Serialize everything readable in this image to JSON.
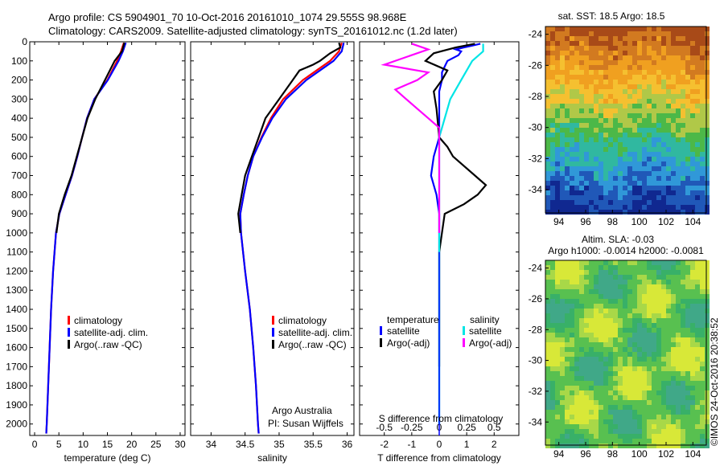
{
  "header": {
    "line1": "Argo profile: CS 5904901_70 10-Oct-2016 20161010_1074 29.555S 98.968E",
    "line2": "Climatology: CARS2009. Satellite-adjusted climatology: synTS_20161012.nc (1.2d later)"
  },
  "panels": {
    "temperature": {
      "xlabel": "temperature (deg C)",
      "legend": [
        "climatology",
        "satellite-adj. clim.",
        "Argo(..raw -QC)"
      ]
    },
    "salinity": {
      "xlabel": "salinity",
      "legend": [
        "climatology",
        "satellite-adj. clim.",
        "Argo(..raw -QC)"
      ],
      "note1": "Argo Australia",
      "note2": "PI: Susan Wijffels"
    },
    "difference": {
      "xlabel": "T difference from climatology",
      "top_label": "S difference from climatology",
      "legend_col1_title": "temperature",
      "legend_col2_title": "salinity",
      "legend_col1": [
        "satellite",
        "Argo(-adj)"
      ],
      "legend_col2": [
        "satellite",
        "Argo(-adj)"
      ]
    },
    "sst_map": {
      "title": "sat. SST: 18.5 Argo: 18.5"
    },
    "sla_map": {
      "title1": "Altim. SLA: -0.03",
      "title2": "Argo h1000: -0.0014 h2000: -0.0081"
    },
    "credit": "©IMOS 24-Oct-2016 20:38:52"
  },
  "colors": {
    "climatology": "#ff0000",
    "satellite": "#0000ff",
    "argo": "#000000",
    "sal_satellite": "#00e5e5",
    "sal_argo": "#ff00ff"
  },
  "chart_data": [
    {
      "type": "line",
      "xlabel": "temperature (deg C)",
      "ylabel": "",
      "xlim": [
        -1,
        31
      ],
      "ylim": [
        2060,
        0
      ],
      "xticks": [
        0,
        5,
        10,
        15,
        20,
        25,
        30
      ],
      "yticks": [
        0,
        100,
        200,
        300,
        400,
        500,
        600,
        700,
        800,
        900,
        1000,
        1100,
        1200,
        1300,
        1400,
        1500,
        1600,
        1700,
        1800,
        1900,
        2000
      ],
      "series": [
        {
          "name": "climatology",
          "color": "#ff0000",
          "depth": [
            5,
            50,
            100,
            150,
            200,
            300,
            400,
            500,
            600,
            700,
            800,
            900,
            1000,
            1200,
            1400,
            1600,
            1800,
            2000,
            2050
          ],
          "values": [
            18.4,
            17.8,
            17.0,
            16.0,
            15.0,
            12.3,
            10.8,
            9.8,
            8.8,
            7.7,
            6.4,
            5.1,
            4.4,
            3.8,
            3.4,
            3.1,
            2.8,
            2.5,
            2.4
          ]
        },
        {
          "name": "satellite-adj. clim.",
          "color": "#0000ff",
          "depth": [
            5,
            50,
            100,
            150,
            200,
            300,
            400,
            500,
            600,
            700,
            800,
            900,
            1000,
            1200,
            1400,
            1600,
            1800,
            2000,
            2050
          ],
          "values": [
            18.8,
            18.2,
            17.3,
            16.2,
            15.1,
            12.3,
            10.8,
            9.8,
            8.8,
            7.7,
            6.4,
            5.1,
            4.4,
            3.8,
            3.4,
            3.1,
            2.8,
            2.5,
            2.4
          ]
        },
        {
          "name": "Argo(..raw -QC)",
          "color": "#000000",
          "depth": [
            5,
            50,
            100,
            150,
            200,
            300,
            400,
            500,
            600,
            700,
            800,
            900,
            1000
          ],
          "values": [
            18.5,
            18.0,
            16.5,
            15.5,
            14.5,
            12.5,
            10.9,
            9.8,
            8.7,
            7.6,
            6.2,
            5.0,
            4.5
          ]
        }
      ]
    },
    {
      "type": "line",
      "xlabel": "salinity",
      "ylabel": "",
      "xlim": [
        33.7,
        36.1
      ],
      "ylim": [
        2060,
        0
      ],
      "xticks": [
        34,
        34.5,
        35,
        35.5,
        36
      ],
      "xtick_labels": [
        "34",
        "34.5",
        "35",
        "35.5",
        "36"
      ],
      "series": [
        {
          "name": "climatology",
          "color": "#ff0000",
          "depth": [
            5,
            50,
            100,
            150,
            200,
            300,
            400,
            500,
            600,
            700,
            800,
            900,
            1000,
            1200,
            1400,
            1600,
            1800,
            2000,
            2050
          ],
          "values": [
            35.92,
            35.88,
            35.75,
            35.55,
            35.35,
            35.06,
            34.88,
            34.74,
            34.62,
            34.54,
            34.48,
            34.43,
            34.44,
            34.5,
            34.57,
            34.62,
            34.66,
            34.69,
            34.7
          ]
        },
        {
          "name": "satellite-adj. clim.",
          "color": "#0000ff",
          "depth": [
            5,
            50,
            100,
            150,
            200,
            300,
            400,
            500,
            600,
            700,
            800,
            900,
            1000,
            1200,
            1400,
            1600,
            1800,
            2000,
            2050
          ],
          "values": [
            35.95,
            35.92,
            35.8,
            35.6,
            35.4,
            35.1,
            34.9,
            34.75,
            34.62,
            34.54,
            34.48,
            34.43,
            34.44,
            34.5,
            34.57,
            34.62,
            34.66,
            34.69,
            34.7
          ]
        },
        {
          "name": "Argo(..raw -QC)",
          "color": "#000000",
          "depth": [
            5,
            30,
            60,
            100,
            120,
            150,
            200,
            300,
            400,
            500,
            600,
            700,
            800,
            900,
            1000
          ],
          "values": [
            35.88,
            35.9,
            35.75,
            35.6,
            35.5,
            35.3,
            35.2,
            35.0,
            34.8,
            34.7,
            34.6,
            34.5,
            34.45,
            34.4,
            34.43
          ]
        }
      ]
    },
    {
      "type": "line",
      "xlabel": "T difference from climatology",
      "top_label": "S difference from climatology",
      "xlim": [
        -2.9,
        2.9
      ],
      "ylim": [
        2060,
        0
      ],
      "xticks": [
        -2,
        -1,
        0,
        1,
        2
      ],
      "top_ticks": [
        -0.5,
        -0.25,
        0,
        0.25,
        0.5
      ],
      "series": [
        {
          "name": "temperature satellite",
          "color": "#0000ff",
          "depth": [
            10,
            20,
            30,
            40,
            50,
            70,
            100,
            130,
            160,
            200,
            260,
            350,
            500,
            600,
            700,
            800,
            900,
            1000,
            1200,
            1500,
            2000
          ],
          "values": [
            1.5,
            1.2,
            0.9,
            0.6,
            0.8,
            0.7,
            0.3,
            0.2,
            0.1,
            0.1,
            0.0,
            0.0,
            0.0,
            -0.2,
            -0.3,
            -0.1,
            0.0,
            0.0,
            0.0,
            0.0,
            0.0
          ]
        },
        {
          "name": "temperature Argo(-adj)",
          "color": "#000000",
          "depth": [
            10,
            30,
            60,
            100,
            150,
            200,
            260,
            350,
            500,
            550,
            600,
            700,
            750,
            800,
            850,
            900,
            1000,
            1100,
            1300,
            1600,
            1700
          ],
          "values": [
            1.3,
            0.6,
            -0.2,
            -0.5,
            0.3,
            0.1,
            -0.2,
            -0.1,
            0.0,
            0.3,
            0.5,
            1.3,
            1.7,
            1.4,
            0.9,
            0.2,
            0.1,
            0.0,
            0.0,
            0.0,
            0.0
          ]
        },
        {
          "name": "salinity satellite",
          "color": "#00e5e5",
          "depth": [
            10,
            50,
            100,
            200,
            300,
            500,
            800,
            1000,
            1400,
            2000
          ],
          "values": [
            0.4,
            0.4,
            0.3,
            0.2,
            0.1,
            0.0,
            0.0,
            0.0,
            0.0,
            0.0
          ]
        },
        {
          "name": "salinity Argo(-adj)",
          "color": "#ff00ff",
          "depth": [
            10,
            40,
            80,
            120,
            160,
            200,
            250,
            300,
            350,
            400,
            450,
            500,
            800,
            1000
          ],
          "values": [
            -0.25,
            -0.1,
            -0.3,
            -0.5,
            -0.1,
            -0.2,
            -0.4,
            -0.3,
            -0.2,
            -0.1,
            0.0,
            0.0,
            0.0,
            0.0
          ]
        }
      ]
    },
    {
      "type": "heatmap",
      "title": "sat. SST: 18.5 Argo: 18.5",
      "xticks": [
        94,
        96,
        98,
        100,
        102,
        104
      ],
      "yticks": [
        -24,
        -26,
        -28,
        -30,
        -32,
        -34
      ],
      "xlim": [
        93,
        105
      ],
      "ylim": [
        -35.5,
        -23.5
      ]
    },
    {
      "type": "heatmap",
      "title": "Altim. SLA: -0.03",
      "xticks": [
        94,
        96,
        98,
        100,
        102,
        104
      ],
      "yticks": [
        -24,
        -26,
        -28,
        -30,
        -32,
        -34
      ],
      "xlim": [
        93,
        105
      ],
      "ylim": [
        -35.5,
        -23.5
      ]
    }
  ]
}
